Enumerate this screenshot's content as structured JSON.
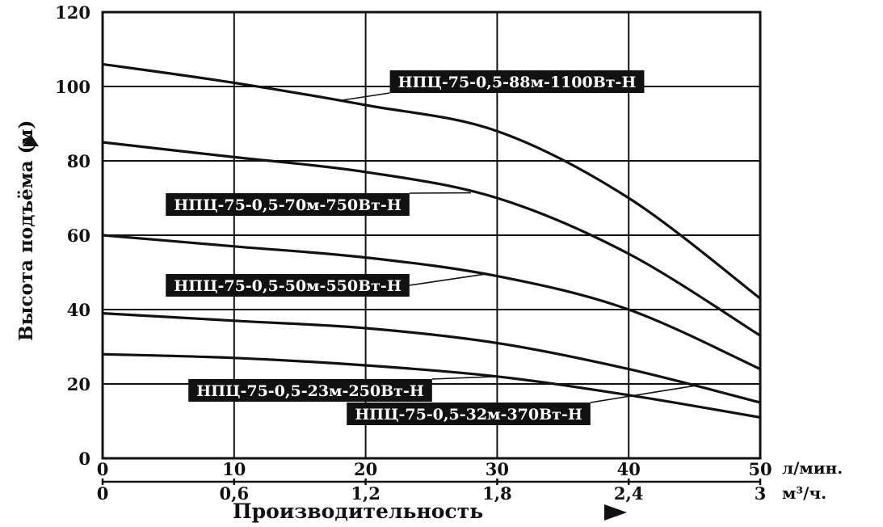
{
  "chart_data": {
    "type": "line",
    "title": "",
    "ylabel": "Высота подъёма (м)",
    "xlabel": "Производительность",
    "ylim": [
      0,
      120
    ],
    "xlim": [
      0,
      50
    ],
    "grid": true,
    "y_ticks": [
      "0",
      "20",
      "40",
      "60",
      "80",
      "100",
      "120"
    ],
    "x_ticks": [
      "0",
      "10",
      "20",
      "30",
      "40",
      "50"
    ],
    "x_unit": "л/мин.",
    "x2_ticks": [
      "0",
      "0,6",
      "1,2",
      "1,8",
      "2,4",
      "3"
    ],
    "x2_unit": "м³/ч.",
    "x": [
      0,
      10,
      20,
      30,
      40,
      50
    ],
    "series": [
      {
        "name": "НПЦ-75-0,5-88м-1100Вт-Н",
        "values": [
          106,
          101,
          95,
          88,
          70,
          43
        ]
      },
      {
        "name": "НПЦ-75-0,5-70м-750Вт-Н",
        "values": [
          85,
          81,
          77,
          70,
          55,
          33
        ]
      },
      {
        "name": "НПЦ-75-0,5-50м-550Вт-Н",
        "values": [
          60,
          57,
          54,
          49,
          40,
          24
        ]
      },
      {
        "name": "НПЦ-75-0,5-32м-370Вт-Н",
        "values": [
          39,
          37,
          35,
          31,
          24,
          15
        ]
      },
      {
        "name": "НПЦ-75-0,5-23м-250Вт-Н",
        "values": [
          28,
          27,
          25,
          22,
          17,
          11
        ]
      }
    ]
  }
}
